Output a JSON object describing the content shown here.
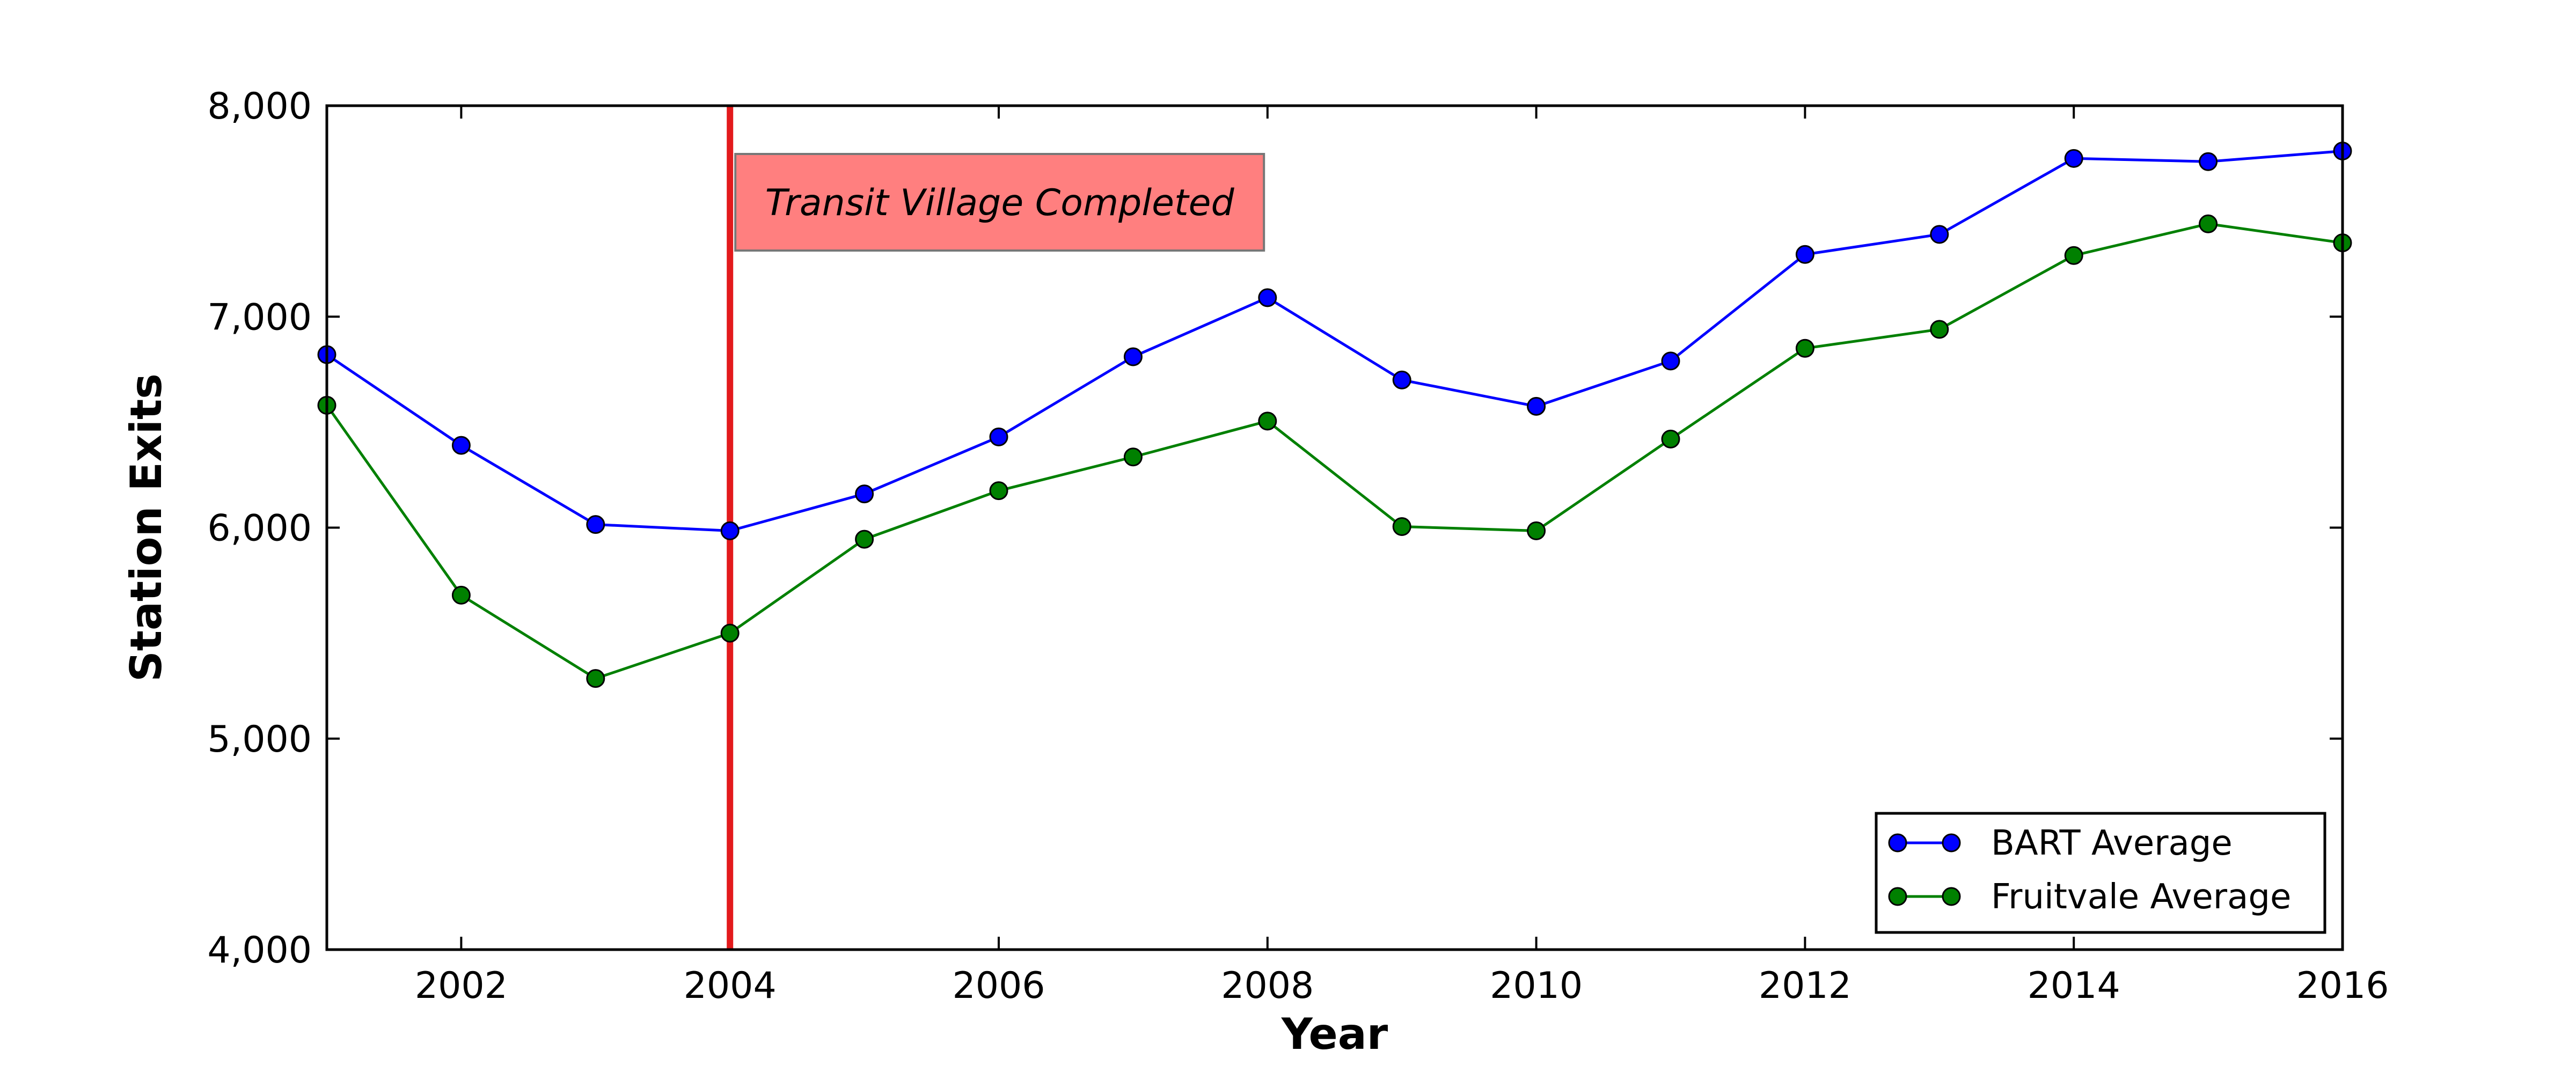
{
  "chart_data": {
    "type": "line",
    "xlabel": "Year",
    "ylabel": "Station Exits",
    "xlim": [
      2001,
      2016
    ],
    "ylim": [
      4000,
      8000
    ],
    "xticks": [
      2002,
      2004,
      2006,
      2008,
      2010,
      2012,
      2014,
      2016
    ],
    "yticks": [
      4000,
      5000,
      6000,
      7000,
      8000
    ],
    "xtick_labels": [
      "2002",
      "2004",
      "2006",
      "2008",
      "2010",
      "2012",
      "2014",
      "2016"
    ],
    "ytick_labels": [
      "4,000",
      "5,000",
      "6,000",
      "7,000",
      "8,000"
    ],
    "x": [
      2001,
      2002,
      2003,
      2004,
      2005,
      2006,
      2007,
      2008,
      2009,
      2010,
      2011,
      2012,
      2013,
      2014,
      2015,
      2016
    ],
    "series": [
      {
        "name": "BART Average",
        "color": "#0000ff",
        "values": [
          6820,
          6390,
          6015,
          5985,
          6160,
          6430,
          6810,
          7090,
          6700,
          6575,
          6790,
          7295,
          7390,
          7750,
          7735,
          7785
        ]
      },
      {
        "name": "Fruitvale Average",
        "color": "#008000",
        "values": [
          6580,
          5680,
          5285,
          5500,
          5945,
          6175,
          6335,
          6505,
          6005,
          5985,
          6420,
          6850,
          6940,
          7290,
          7440,
          7350
        ]
      }
    ],
    "annotations": [
      {
        "type": "vline",
        "x": 2004,
        "color": "#e31a1c",
        "label": "Transit Village Completed",
        "label_color": "#ff7f7f"
      }
    ],
    "legend_position": "lower-right",
    "grid": false
  }
}
